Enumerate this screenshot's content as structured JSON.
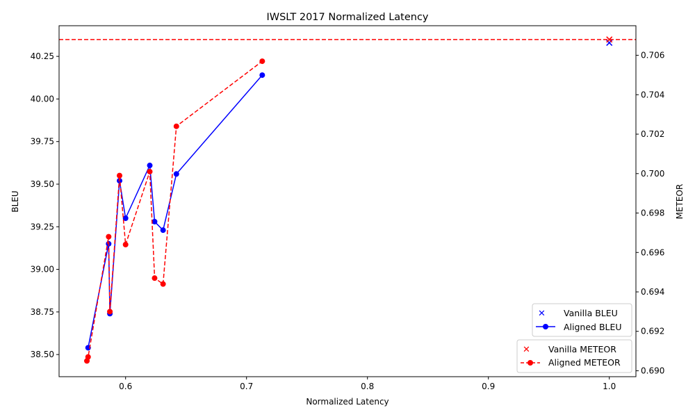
{
  "chart_data": {
    "type": "line",
    "title": "IWSLT 2017 Normalized Latency",
    "xlabel": "Normalized Latency",
    "ylabel": "BLEU",
    "y2label": "METEOR",
    "xlim": [
      0.545,
      1.022
    ],
    "ylim": [
      38.37,
      40.43
    ],
    "y2lim": [
      0.6897,
      0.7075
    ],
    "x_ticks": [
      "0.6",
      "0.7",
      "0.8",
      "0.9",
      "1.0"
    ],
    "y_ticks": [
      "38.50",
      "38.75",
      "39.00",
      "39.25",
      "39.50",
      "39.75",
      "40.00",
      "40.25"
    ],
    "y2_ticks": [
      "0.690",
      "0.692",
      "0.694",
      "0.696",
      "0.698",
      "0.700",
      "0.702",
      "0.704",
      "0.706"
    ],
    "series": [
      {
        "name": "Vanilla BLEU",
        "axis": "left",
        "color": "#0000ff",
        "style": "marker-x",
        "x": [
          1.0
        ],
        "y": [
          40.33
        ]
      },
      {
        "name": "Aligned BLEU",
        "axis": "left",
        "color": "#0000ff",
        "style": "solid-circle",
        "x": [
          0.569,
          0.586,
          0.587,
          0.595,
          0.6,
          0.62,
          0.624,
          0.631,
          0.642,
          0.713
        ],
        "y": [
          38.54,
          39.15,
          38.74,
          39.52,
          39.3,
          39.61,
          39.28,
          39.23,
          39.56,
          40.14
        ]
      },
      {
        "name": "Vanilla METEOR",
        "axis": "right",
        "color": "#ff0000",
        "style": "marker-x",
        "x": [
          1.0
        ],
        "y": [
          0.7068
        ],
        "hline": 0.7068
      },
      {
        "name": "Aligned METEOR",
        "axis": "right",
        "color": "#ff0000",
        "style": "dashed-circle",
        "x": [
          0.568,
          0.569,
          0.586,
          0.587,
          0.595,
          0.6,
          0.62,
          0.624,
          0.631,
          0.642,
          0.713
        ],
        "y": [
          0.6905,
          0.6907,
          0.6968,
          0.693,
          0.6999,
          0.6964,
          0.7001,
          0.6947,
          0.6944,
          0.7024,
          0.7057
        ]
      }
    ],
    "legend": {
      "left_axis": {
        "placement": "lower-right",
        "entries": [
          "Vanilla BLEU",
          "Aligned BLEU"
        ]
      },
      "right_axis": {
        "placement": "lower-right",
        "entries": [
          "Vanilla METEOR",
          "Aligned METEOR"
        ]
      }
    }
  }
}
